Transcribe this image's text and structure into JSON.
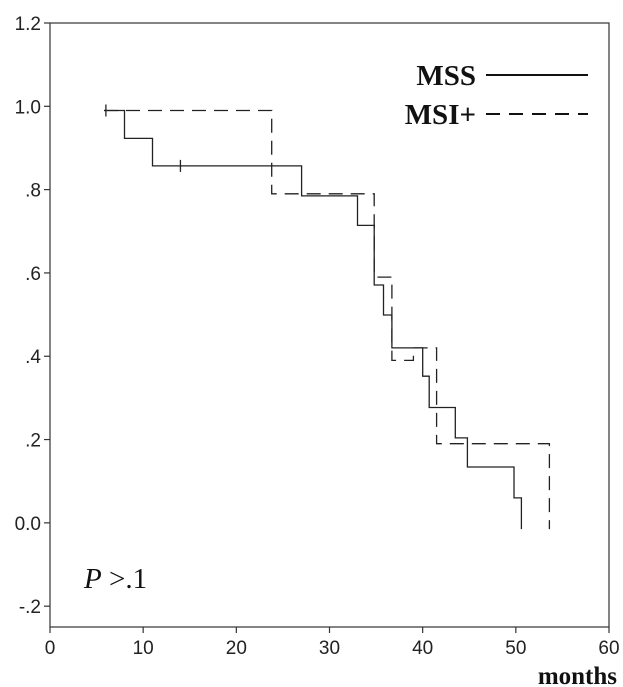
{
  "chart_data": {
    "type": "line",
    "xlabel": "months",
    "ylabel": "",
    "xlim": [
      0,
      60
    ],
    "ylim": [
      -0.25,
      1.2
    ],
    "x_ticks": [
      {
        "value": 0,
        "label": "0"
      },
      {
        "value": 10,
        "label": "10"
      },
      {
        "value": 20,
        "label": "20"
      },
      {
        "value": 30,
        "label": "30"
      },
      {
        "value": 40,
        "label": "40"
      },
      {
        "value": 50,
        "label": "50"
      },
      {
        "value": 60,
        "label": "60"
      }
    ],
    "y_ticks": [
      {
        "value": 1.2,
        "label": "1.2"
      },
      {
        "value": 1.0,
        "label": "1.0"
      },
      {
        "value": 0.8,
        "label": ".8"
      },
      {
        "value": 0.6,
        "label": ".6"
      },
      {
        "value": 0.4,
        "label": ".4"
      },
      {
        "value": 0.2,
        "label": ".2"
      },
      {
        "value": 0.0,
        "label": "0.0"
      },
      {
        "value": -0.2,
        "label": "-.2"
      }
    ],
    "grid": false,
    "legend_position": "top-right",
    "series": [
      {
        "name": "MSS",
        "line_style": "solid",
        "step_points": [
          [
            5.8,
            0.99
          ],
          [
            8.0,
            0.99
          ],
          [
            8.0,
            0.923
          ],
          [
            11.0,
            0.923
          ],
          [
            11.0,
            0.857
          ],
          [
            27.0,
            0.857
          ],
          [
            27.0,
            0.785
          ],
          [
            33.0,
            0.785
          ],
          [
            33.0,
            0.714
          ],
          [
            34.8,
            0.714
          ],
          [
            34.8,
            0.571
          ],
          [
            35.8,
            0.571
          ],
          [
            35.8,
            0.499
          ],
          [
            36.7,
            0.499
          ],
          [
            36.7,
            0.42
          ],
          [
            40.0,
            0.42
          ],
          [
            40.0,
            0.352
          ],
          [
            40.7,
            0.352
          ],
          [
            40.7,
            0.277
          ],
          [
            43.5,
            0.277
          ],
          [
            43.5,
            0.204
          ],
          [
            44.8,
            0.204
          ],
          [
            44.8,
            0.134
          ],
          [
            49.8,
            0.134
          ],
          [
            49.8,
            0.06
          ],
          [
            50.6,
            0.06
          ],
          [
            50.6,
            -0.015
          ]
        ],
        "censored": [
          [
            6.0,
            0.99
          ],
          [
            14.0,
            0.857
          ]
        ]
      },
      {
        "name": "MSI+",
        "line_style": "dashed",
        "step_points": [
          [
            5.8,
            0.99
          ],
          [
            23.8,
            0.99
          ],
          [
            23.8,
            0.79
          ],
          [
            34.8,
            0.79
          ],
          [
            34.8,
            0.75
          ],
          [
            34.8,
            0.59
          ],
          [
            36.7,
            0.59
          ],
          [
            36.7,
            0.39
          ],
          [
            39.0,
            0.39
          ],
          [
            39.0,
            0.42
          ],
          [
            41.5,
            0.42
          ],
          [
            41.5,
            0.19
          ],
          [
            53.6,
            0.19
          ],
          [
            53.6,
            -0.015
          ]
        ],
        "censored": []
      }
    ],
    "annotations": [
      {
        "text_italic": "P",
        "text": " >.1"
      }
    ]
  }
}
